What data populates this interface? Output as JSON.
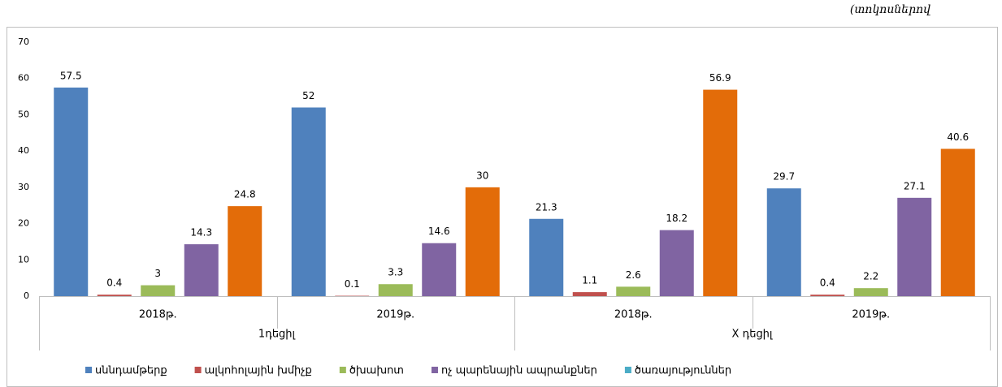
{
  "chart_data": {
    "type": "bar",
    "unit_note": "(տոկոսներով",
    "categories": [
      "2018թ.",
      "2019թ.",
      "2018թ.",
      "2019թ."
    ],
    "groups": [
      "1դեցիլ",
      "X դեցիլ"
    ],
    "series": [
      {
        "name": "սննդամթերք",
        "color": "#4f81bd",
        "legend_color": "#4f81bd",
        "values": [
          57.5,
          52,
          21.3,
          29.7
        ]
      },
      {
        "name": "ալկոհոլային  խմիչք",
        "color": "#c0504d",
        "legend_color": "#c0504d",
        "values": [
          0.4,
          0.1,
          1.1,
          0.4
        ]
      },
      {
        "name": "ծխախոտ",
        "color": "#9bbb59",
        "legend_color": "#9bbb59",
        "values": [
          3,
          3.3,
          2.6,
          2.2
        ]
      },
      {
        "name": "ոչ պարենային  ապրանքներ",
        "color": "#8064a2",
        "legend_color": "#8064a2",
        "values": [
          14.3,
          14.6,
          18.2,
          27.1
        ]
      },
      {
        "name": "ծառայություններ",
        "color": "#e36c09",
        "legend_color": "#4bacc6",
        "values": [
          24.8,
          30,
          56.9,
          40.6
        ]
      }
    ],
    "ylim": [
      0,
      70
    ],
    "yticks": [
      0,
      10,
      20,
      30,
      40,
      50,
      60,
      70
    ],
    "grid": false,
    "legend": "bottom"
  }
}
